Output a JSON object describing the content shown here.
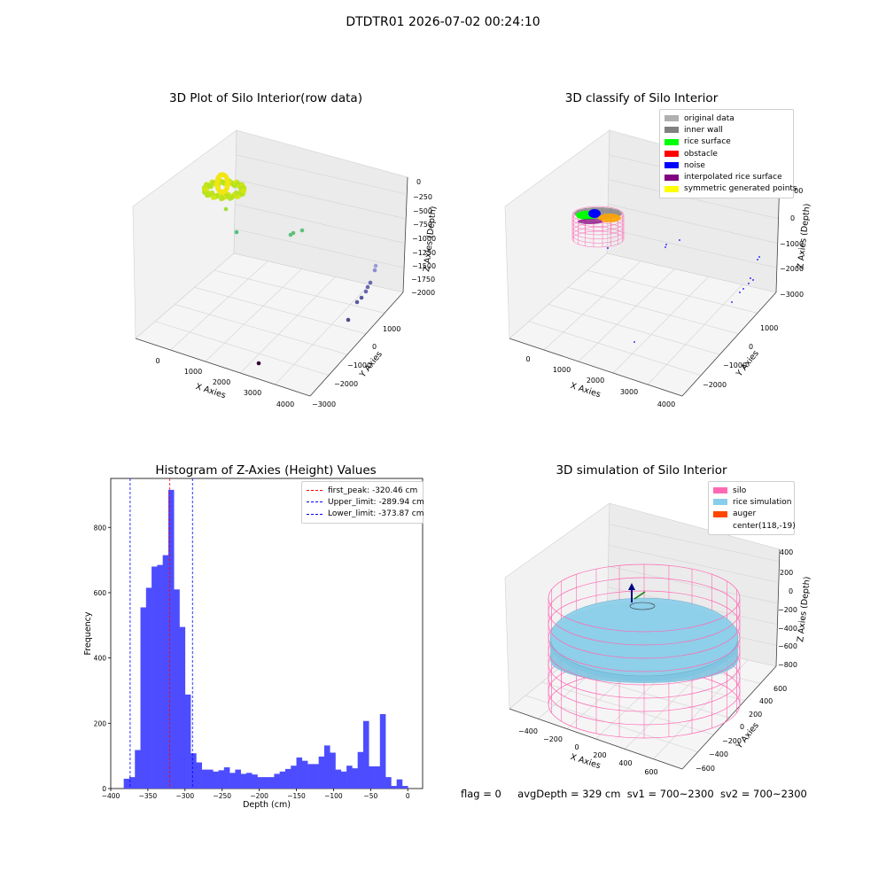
{
  "figure": {
    "suptitle": "DTDTR01 2026-07-02 00:24:10",
    "status_line": {
      "flag": "flag = 0",
      "avg_depth": "avgDepth = 329 cm",
      "sv1": "sv1 = 700~2300",
      "sv2": "sv2 = 700~2300"
    }
  },
  "panels": {
    "raw": {
      "title": "3D Plot of Silo Interior(row data)",
      "xlabel": "X Axies",
      "ylabel": "Y Axies",
      "zlabel": "Z Axies (Depth)",
      "xticks": [
        "0",
        "1000",
        "2000",
        "3000",
        "4000"
      ],
      "yticks": [
        "1000",
        "0",
        "−1000",
        "−2000",
        "−3000"
      ],
      "zticks": [
        "0",
        "−250",
        "−500",
        "−750",
        "−1000",
        "−1250",
        "−1500",
        "−1750",
        "−2000"
      ]
    },
    "classify": {
      "title": "3D classify of Silo Interior",
      "xlabel": "X Axies",
      "ylabel": "Y Axies",
      "zlabel": "Z Axies (Depth)",
      "xticks": [
        "0",
        "1000",
        "2000",
        "3000",
        "4000"
      ],
      "yticks": [
        "1000",
        "0",
        "−1000",
        "−2000"
      ],
      "zticks": [
        "1000",
        "0",
        "−1000",
        "−2000",
        "−3000"
      ],
      "legend": [
        {
          "label": "original data",
          "color": "#b0b0b0"
        },
        {
          "label": "inner wall",
          "color": "#808080"
        },
        {
          "label": "rice surface",
          "color": "#00ff00"
        },
        {
          "label": "obstacle",
          "color": "#ff0000"
        },
        {
          "label": "noise",
          "color": "#0000ff"
        },
        {
          "label": "interpolated rice surface",
          "color": "#800080"
        },
        {
          "label": "symmetric generated points",
          "color": "#ffff00"
        }
      ]
    },
    "histogram": {
      "title": "Histogram of Z-Axies (Height) Values",
      "legend": [
        {
          "label": "first_peak: -320.46 cm",
          "color": "#ff0000"
        },
        {
          "label": "Upper_limit: -289.94 cm",
          "color": "#0000ff"
        },
        {
          "label": "Lower_limit: -373.87 cm",
          "color": "#0000ff"
        }
      ]
    },
    "simulation": {
      "title": "3D simulation of Silo Interior",
      "xlabel": "X Axies",
      "ylabel": "Y Axies",
      "zlabel": "Z Axies (Depth)",
      "xticks": [
        "−400",
        "−200",
        "0",
        "200",
        "400",
        "600"
      ],
      "yticks": [
        "600",
        "400",
        "200",
        "0",
        "−200",
        "−400",
        "−600"
      ],
      "zticks": [
        "400",
        "200",
        "0",
        "−200",
        "−400",
        "−600",
        "−800"
      ],
      "legend": [
        {
          "label": "silo",
          "color": "#ff69b4"
        },
        {
          "label": "rice simulation",
          "color": "#87ceeb"
        },
        {
          "label": "auger",
          "color": "#ff4500"
        },
        {
          "label": "center(118,-19)",
          "color": ""
        }
      ]
    }
  },
  "chart_data": [
    {
      "type": "scatter",
      "title": "3D Plot of Silo Interior(row data)",
      "xlabel": "X Axies",
      "ylabel": "Y Axies",
      "zlabel": "Z Axies (Depth)",
      "xlim": [
        -600,
        4400
      ],
      "ylim": [
        -3000,
        1500
      ],
      "zlim": [
        -2200,
        100
      ]
    },
    {
      "type": "scatter",
      "title": "3D classify of Silo Interior",
      "xlabel": "X Axies",
      "ylabel": "Y Axies",
      "zlabel": "Z Axies (Depth)",
      "legend": [
        "original data",
        "inner wall",
        "rice surface",
        "obstacle",
        "noise",
        "interpolated rice surface",
        "symmetric generated points"
      ],
      "xlim": [
        -600,
        4400
      ],
      "ylim": [
        -2500,
        1500
      ],
      "zlim": [
        -3500,
        1200
      ]
    },
    {
      "type": "bar",
      "title": "Histogram of Z-Axies (Height) Values",
      "xlabel": "Depth (cm)",
      "ylabel": "Frequency",
      "xlim": [
        -400,
        20
      ],
      "ylim": [
        0,
        950
      ],
      "xticks": [
        -400,
        -350,
        -300,
        -250,
        -200,
        -150,
        -100,
        -50,
        0
      ],
      "yticks": [
        0,
        200,
        400,
        600,
        800
      ],
      "bin_width": 7.5,
      "bin_starts": [
        -382.5,
        -375,
        -367.5,
        -360,
        -352.5,
        -345,
        -337.5,
        -330,
        -322.5,
        -315,
        -307.5,
        -300,
        -292.5,
        -285,
        -277.5,
        -270,
        -262.5,
        -255,
        -247.5,
        -240,
        -232.5,
        -225,
        -217.5,
        -210,
        -202.5,
        -195,
        -187.5,
        -180,
        -172.5,
        -165,
        -157.5,
        -150,
        -142.5,
        -135,
        -127.5,
        -120,
        -112.5,
        -105,
        -97.5,
        -90,
        -82.5,
        -75,
        -67.5,
        -60,
        -52.5,
        -45,
        -37.5,
        -30,
        -22.5,
        -15,
        -7.5
      ],
      "values": [
        30,
        35,
        118,
        555,
        615,
        680,
        685,
        715,
        915,
        610,
        495,
        288,
        108,
        80,
        58,
        58,
        52,
        56,
        65,
        48,
        58,
        45,
        48,
        43,
        35,
        35,
        35,
        45,
        52,
        60,
        70,
        95,
        85,
        75,
        75,
        98,
        132,
        110,
        58,
        52,
        70,
        62,
        112,
        207,
        68,
        68,
        228,
        35,
        8,
        28,
        8
      ],
      "vlines": [
        {
          "name": "first_peak: -320.46 cm",
          "x": -320.46,
          "color": "#ff0000"
        },
        {
          "name": "Upper_limit: -289.94 cm",
          "x": -289.94,
          "color": "#0000ff"
        },
        {
          "name": "Lower_limit: -373.87 cm",
          "x": -373.87,
          "color": "#0000ff"
        }
      ],
      "bar_color": "#4d4dff"
    },
    {
      "type": "scatter",
      "title": "3D simulation of Silo Interior",
      "xlabel": "X Axies",
      "ylabel": "Y Axies",
      "zlabel": "Z Axies (Depth)",
      "legend": [
        "silo",
        "rice simulation",
        "auger",
        "center(118,-19)"
      ],
      "xlim": [
        -550,
        750
      ],
      "ylim": [
        -700,
        700
      ],
      "zlim": [
        -900,
        500
      ]
    }
  ]
}
